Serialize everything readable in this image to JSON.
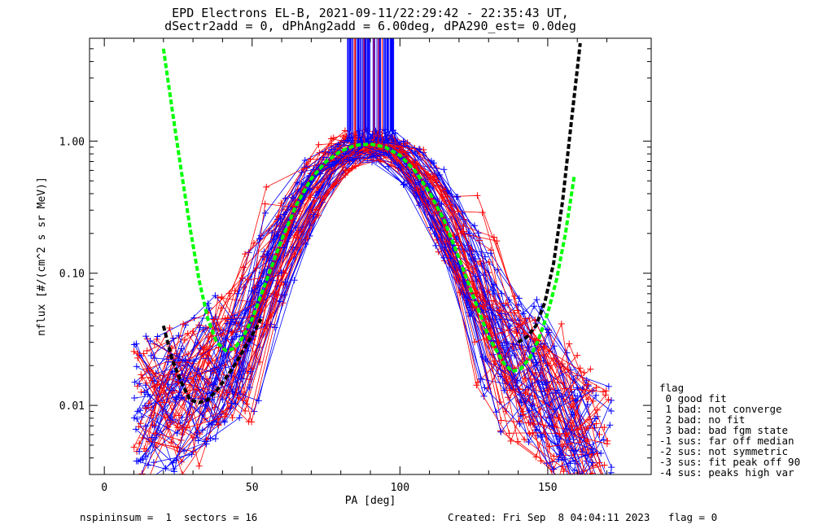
{
  "chart_data": {
    "type": "line",
    "title": "EPD Electrons EL-B, 2021-09-11/22:29:42 - 22:35:43 UT,",
    "subtitle": "dSectr2add = 0, dPhAng2add = 6.00deg, dPA290_est=   0.0deg",
    "xlabel": "PA [deg]",
    "ylabel": "nflux [#/(cm^2 s sr MeV)]",
    "xlim": [
      -5,
      185
    ],
    "ylim": [
      0.003,
      6.0
    ],
    "yscale": "log",
    "xticks": [
      0,
      50,
      100,
      150
    ],
    "xtick_labels": [
      "0",
      "50",
      "100",
      "150"
    ],
    "yticks": [
      0.01,
      0.1,
      1.0
    ],
    "ytick_labels": [
      "0.01",
      "0.10",
      "1.00"
    ],
    "grid": false,
    "legend_position": "right",
    "colors": {
      "series_a": "#ff0000",
      "series_b": "#0000ff",
      "fit_green": "#00ff00",
      "fit_black": "#000000"
    },
    "template_pa": [
      10,
      15,
      20,
      25,
      30,
      35,
      40,
      45,
      50,
      55,
      60,
      65,
      70,
      75,
      80,
      85,
      90,
      95,
      100,
      105,
      110,
      115,
      120,
      125,
      130,
      135,
      140,
      145,
      150,
      155,
      160,
      165,
      170
    ],
    "template_flux": [
      0.009,
      0.009,
      0.01,
      0.011,
      0.012,
      0.015,
      0.02,
      0.026,
      0.035,
      0.07,
      0.14,
      0.26,
      0.45,
      0.65,
      0.8,
      0.9,
      0.95,
      0.92,
      0.82,
      0.65,
      0.45,
      0.28,
      0.15,
      0.08,
      0.045,
      0.03,
      0.02,
      0.015,
      0.012,
      0.008,
      0.006,
      0.005,
      0.004
    ],
    "fit_green": {
      "x": [
        20,
        23,
        26,
        29,
        32,
        35,
        38,
        41,
        44,
        47,
        50,
        55,
        60,
        65,
        70,
        75,
        80,
        85,
        90,
        95,
        100,
        105,
        110,
        115,
        120,
        125,
        130,
        135,
        138,
        141,
        144,
        147,
        150,
        153,
        156,
        159
      ],
      "y": [
        5.0,
        1.7,
        0.6,
        0.22,
        0.09,
        0.045,
        0.03,
        0.026,
        0.027,
        0.033,
        0.045,
        0.09,
        0.18,
        0.33,
        0.52,
        0.7,
        0.84,
        0.93,
        0.95,
        0.9,
        0.78,
        0.6,
        0.41,
        0.25,
        0.13,
        0.065,
        0.033,
        0.021,
        0.018,
        0.019,
        0.023,
        0.032,
        0.05,
        0.09,
        0.2,
        0.55
      ]
    },
    "fit_black": {
      "x": [
        20,
        23,
        26,
        29,
        32,
        35,
        38,
        41,
        44,
        47,
        50,
        53,
        140,
        143,
        146,
        149,
        152,
        155,
        158,
        161
      ],
      "y": [
        0.04,
        0.022,
        0.015,
        0.011,
        0.0105,
        0.011,
        0.013,
        0.016,
        0.02,
        0.026,
        0.034,
        0.045,
        0.03,
        0.033,
        0.04,
        0.06,
        0.12,
        0.35,
        1.4,
        5.5
      ]
    },
    "saturated_spikes": {
      "color": "#0000ff",
      "x_from": 82,
      "x_to": 98,
      "y_base": 1.2
    }
  },
  "legend": {
    "title": "flag",
    "items": [
      " 0 good fit",
      " 1 bad: not converge",
      " 2 bad: no fit",
      " 3 bad: bad fgm state",
      "-1 sus: far off median",
      "-2 sus: not symmetric",
      "-3 sus: fit peak off 90",
      "-4 sus: peaks high var"
    ]
  },
  "footer": {
    "left": "nspininsum =  1  sectors = 16",
    "right": "Created: Fri Sep  8 04:04:11 2023   flag = 0"
  }
}
